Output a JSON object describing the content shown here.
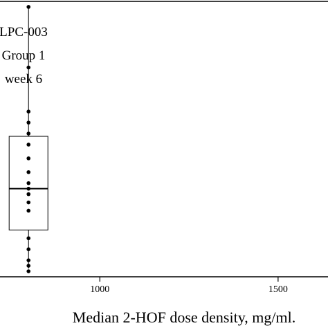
{
  "chart_data": {
    "type": "scatter",
    "title": "",
    "xlabel": "Median 2-HOF dose density, mg/ml.",
    "ylabel": "",
    "xlim": [
      720,
      1640
    ],
    "ylim": [
      0,
      1
    ],
    "x_ticks": [
      1000,
      1500
    ],
    "grid": false,
    "annotation_lines": [
      "LPC-003",
      "Group 1",
      "week 6"
    ],
    "boxplot": {
      "x_center": 800,
      "whisker_low": 0.03,
      "q1": 0.17,
      "median": 0.32,
      "q3": 0.51,
      "whisker_high": 0.98
    },
    "points": [
      0.98,
      0.76,
      0.6,
      0.56,
      0.52,
      0.48,
      0.43,
      0.38,
      0.34,
      0.32,
      0.3,
      0.27,
      0.24,
      0.14,
      0.1,
      0.06,
      0.04,
      0.02
    ]
  }
}
